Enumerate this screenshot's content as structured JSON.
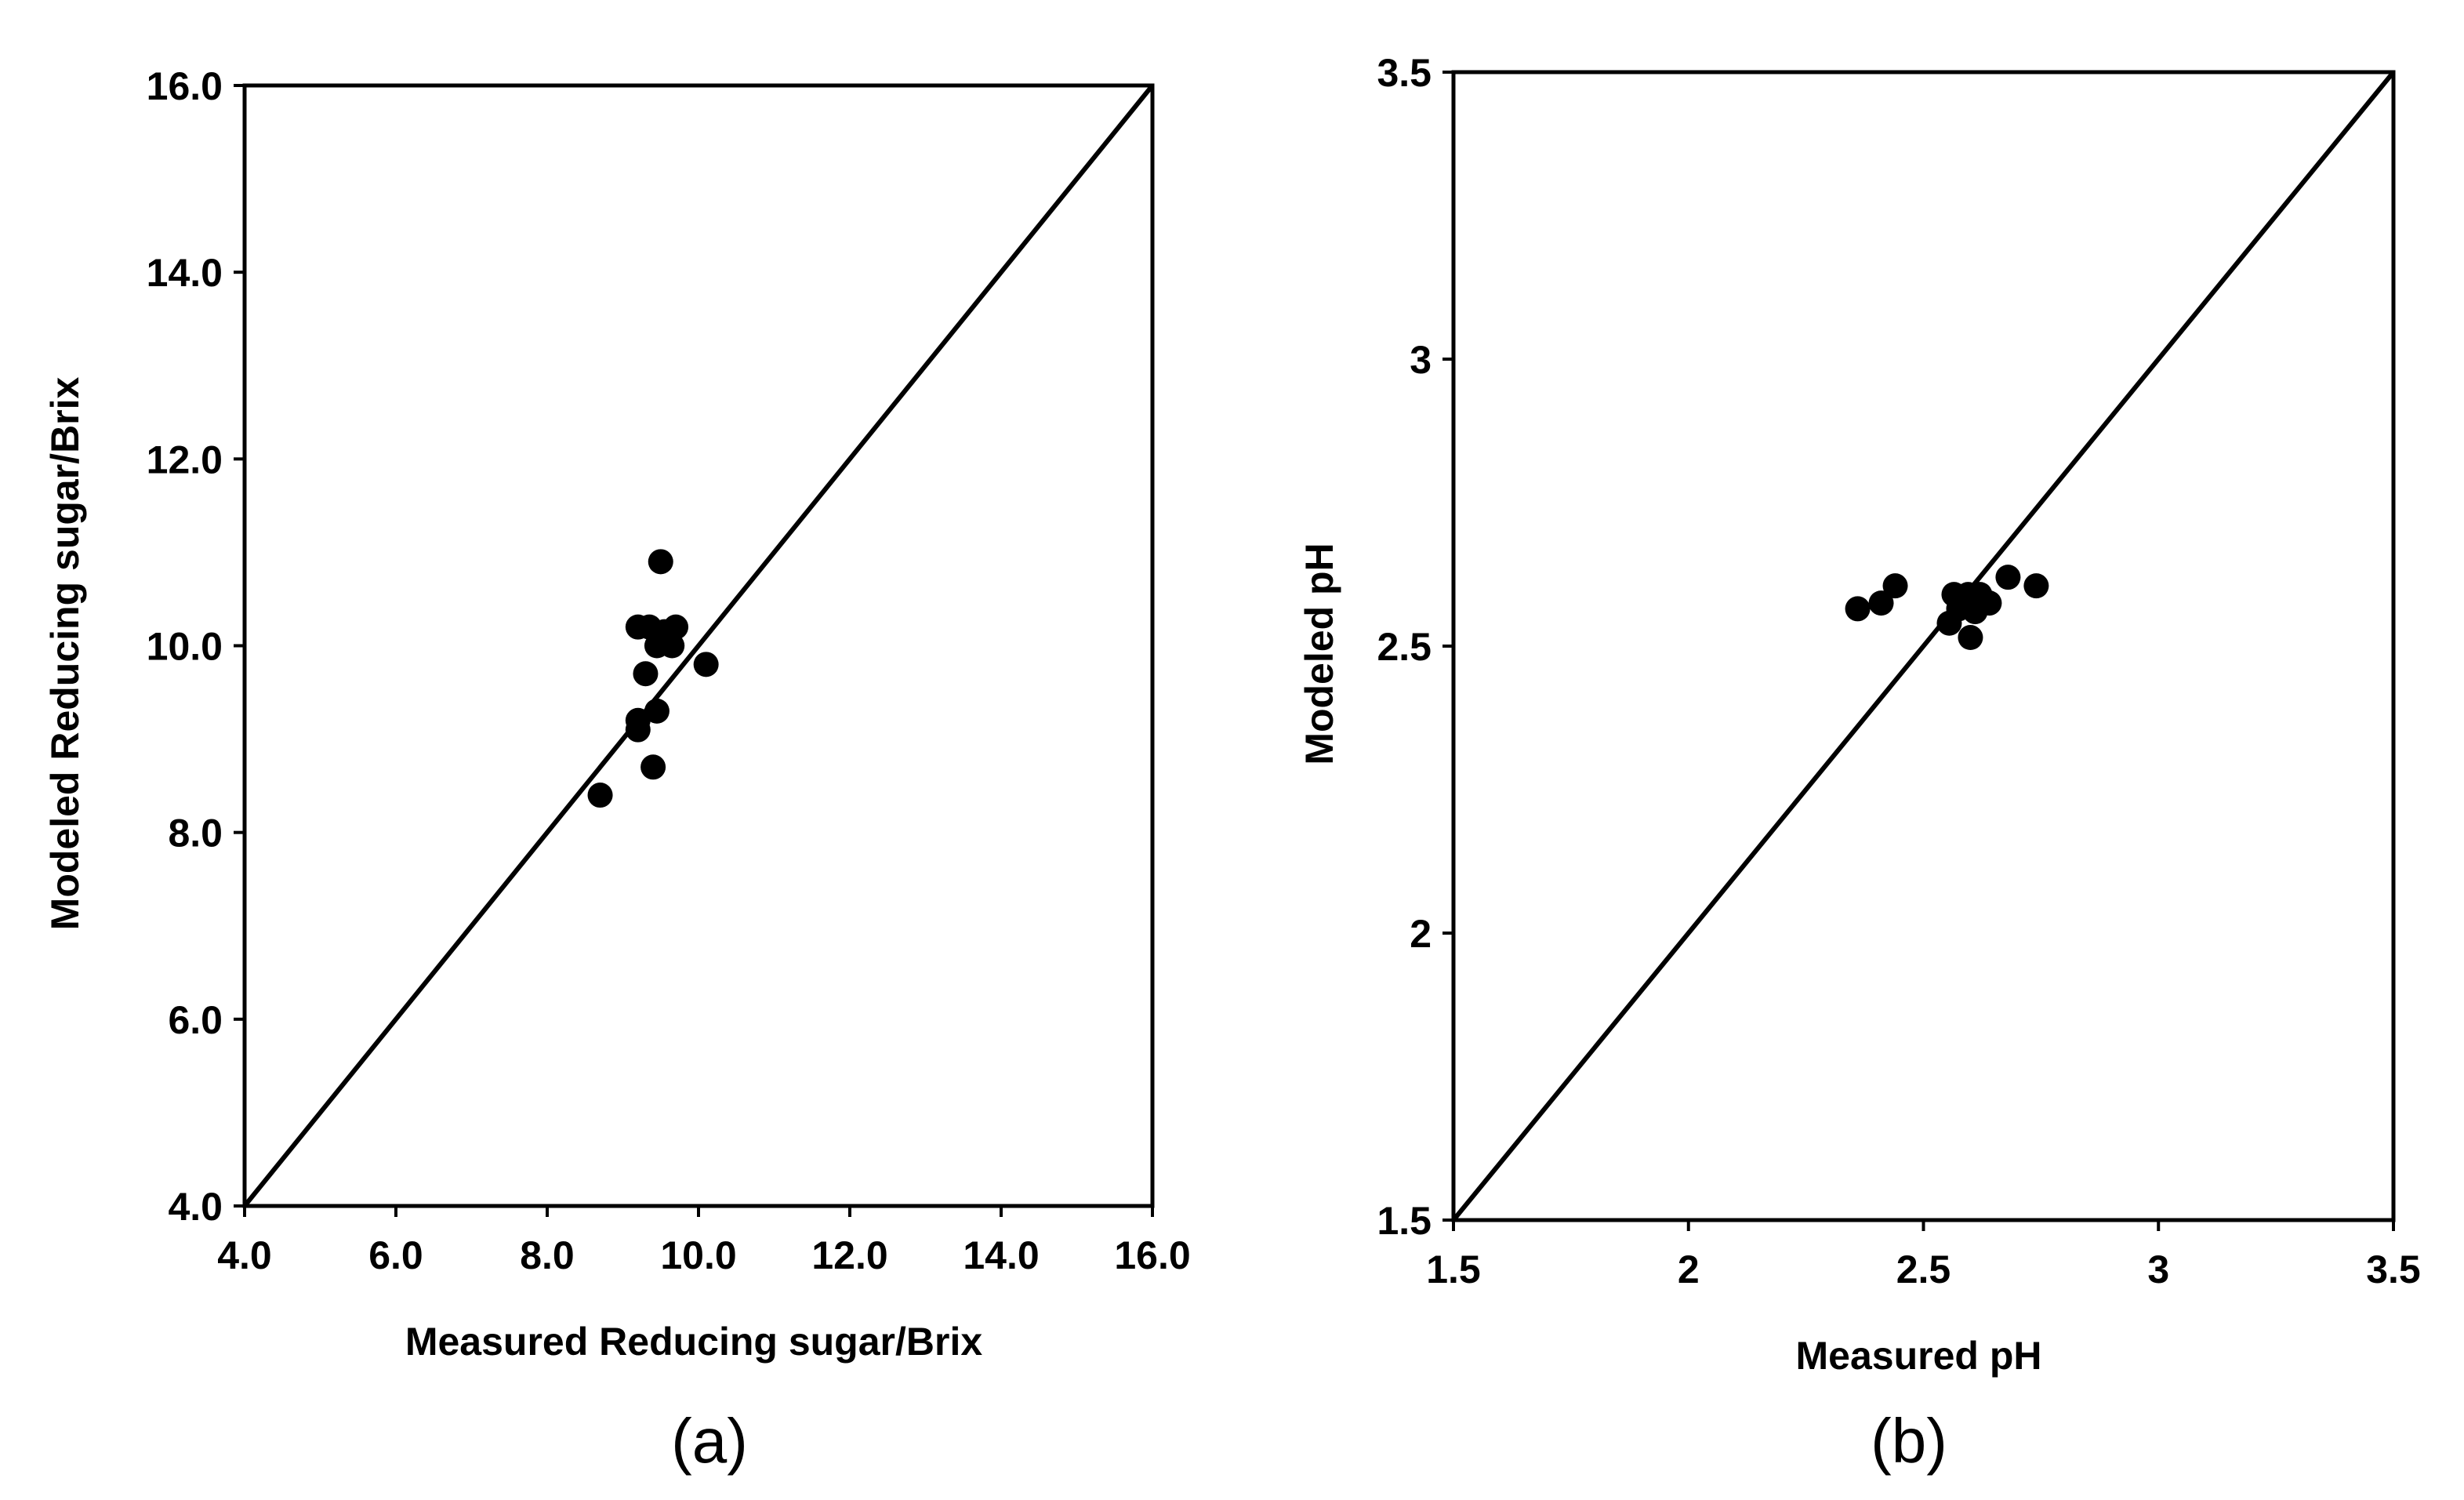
{
  "chart_data": [
    {
      "type": "scatter",
      "panel_label": "(a)",
      "title": "",
      "xlabel": "Measured Reducing sugar/Brix",
      "ylabel": "Modeled Reducing sugar/Brix",
      "xlim": [
        4.0,
        16.0
      ],
      "ylim": [
        4.0,
        16.0
      ],
      "xticks": [
        "4.0",
        "6.0",
        "8.0",
        "10.0",
        "12.0",
        "14.0",
        "16.0"
      ],
      "yticks": [
        "4.0",
        "6.0",
        "8.0",
        "10.0",
        "12.0",
        "14.0",
        "16.0"
      ],
      "grid": false,
      "legend": "none",
      "reference_line": "y = x",
      "marker_color": "#000000",
      "series": [
        {
          "points": [
            {
              "x": 8.7,
              "y": 8.4
            },
            {
              "x": 9.2,
              "y": 9.1
            },
            {
              "x": 9.2,
              "y": 9.2
            },
            {
              "x": 9.2,
              "y": 10.2
            },
            {
              "x": 9.3,
              "y": 9.7
            },
            {
              "x": 9.35,
              "y": 10.2
            },
            {
              "x": 9.4,
              "y": 8.7
            },
            {
              "x": 9.45,
              "y": 9.3
            },
            {
              "x": 9.5,
              "y": 10.9
            },
            {
              "x": 9.45,
              "y": 10.0
            },
            {
              "x": 9.55,
              "y": 10.15
            },
            {
              "x": 9.65,
              "y": 10.0
            },
            {
              "x": 9.7,
              "y": 10.2
            },
            {
              "x": 10.1,
              "y": 9.8
            }
          ]
        }
      ]
    },
    {
      "type": "scatter",
      "panel_label": "(b)",
      "title": "",
      "xlabel": "Measured pH",
      "ylabel": "Modeled pH",
      "xlim": [
        1.5,
        3.5
      ],
      "ylim": [
        1.5,
        3.5
      ],
      "xticks": [
        "1.5",
        "2",
        "2.5",
        "3",
        "3.5"
      ],
      "yticks": [
        "1.5",
        "2",
        "2.5",
        "3",
        "3.5"
      ],
      "grid": false,
      "legend": "none",
      "reference_line": "y = x",
      "marker_color": "#000000",
      "series": [
        {
          "points": [
            {
              "x": 2.36,
              "y": 2.565
            },
            {
              "x": 2.41,
              "y": 2.575
            },
            {
              "x": 2.44,
              "y": 2.605
            },
            {
              "x": 2.555,
              "y": 2.54
            },
            {
              "x": 2.565,
              "y": 2.59
            },
            {
              "x": 2.575,
              "y": 2.565
            },
            {
              "x": 2.585,
              "y": 2.58
            },
            {
              "x": 2.595,
              "y": 2.59
            },
            {
              "x": 2.6,
              "y": 2.515
            },
            {
              "x": 2.61,
              "y": 2.56
            },
            {
              "x": 2.62,
              "y": 2.59
            },
            {
              "x": 2.64,
              "y": 2.575
            },
            {
              "x": 2.68,
              "y": 2.62
            },
            {
              "x": 2.74,
              "y": 2.605
            }
          ]
        }
      ]
    }
  ]
}
